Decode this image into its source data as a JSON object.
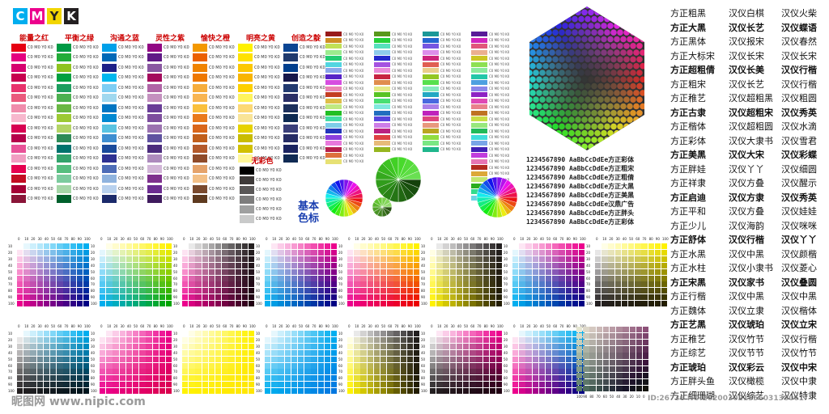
{
  "logo": [
    "C",
    "M",
    "Y",
    "K"
  ],
  "logo_colors": [
    "#00aeef",
    "#ec008c",
    "#fff200",
    "#231f20"
  ],
  "columns": [
    {
      "title": "能量之红",
      "colors": [
        "#e60012",
        "#e4007f",
        "#d6006f",
        "#c7004f",
        "#e8336d",
        "#ea5a7d",
        "#f08dac",
        "#f7b8cd",
        "#d70051",
        "#b5004a",
        "#e85298",
        "#f19ec2",
        "#e5004f",
        "#c30d23",
        "#a40035",
        "#8a1538"
      ]
    },
    {
      "title": "平衡之绿",
      "colors": [
        "#009944",
        "#22ac38",
        "#8fc31f",
        "#00a040",
        "#1e9e5f",
        "#4cb050",
        "#6ab744",
        "#9cc933",
        "#b3d465",
        "#2e8b57",
        "#00736d",
        "#33a36b",
        "#56be7f",
        "#7ccb9e",
        "#a5d6a7",
        "#00602c"
      ]
    },
    {
      "title": "沟通之蓝",
      "colors": [
        "#00a0e9",
        "#0068b7",
        "#1d2088",
        "#00b7ee",
        "#7ecef4",
        "#a0d8ef",
        "#0075c2",
        "#0088d1",
        "#59c3e1",
        "#3e8ed0",
        "#1a4a9b",
        "#2e3192",
        "#4d6cb7",
        "#8fb3de",
        "#b8d1ee",
        "#1b2a6b"
      ]
    },
    {
      "title": "灵性之紫",
      "colors": [
        "#920783",
        "#601986",
        "#8957a1",
        "#a40b5d",
        "#b064a6",
        "#c490bf",
        "#6a3e98",
        "#7d4e9e",
        "#9b72b0",
        "#5f52a0",
        "#4b2c7d",
        "#ad8bbd",
        "#d2b6d8",
        "#7e318e",
        "#6c2c91",
        "#3f1b5e"
      ]
    },
    {
      "title": "愉快之橙",
      "colors": [
        "#f39800",
        "#eb6100",
        "#f08300",
        "#ee7800",
        "#f6ad3c",
        "#f8b551",
        "#fac03d",
        "#e97a1b",
        "#d9661a",
        "#c15f1b",
        "#b45a2b",
        "#8f4b2a",
        "#e5a36b",
        "#f3c087",
        "#7a4a2e",
        "#5e3a1f"
      ]
    },
    {
      "title": "明亮之黄",
      "colors": [
        "#fff100",
        "#ffe100",
        "#fcc800",
        "#f8b500",
        "#fdd000",
        "#fff45c",
        "#fcd975",
        "#f9e497",
        "#e6d200",
        "#c9bc00",
        "#d1c000",
        "#fff799",
        "#f5e4a1",
        "#e3c700",
        "#c7a600",
        "#a68b00"
      ]
    },
    {
      "title": "创造之靛",
      "colors": [
        "#0a4593",
        "#1f3a6e",
        "#003f8e",
        "#17184b",
        "#223a70",
        "#2a2f66",
        "#1c305c",
        "#0d2a52",
        "#3a3f7a",
        "#262c65",
        "#1b2461",
        "#102a54",
        "#0e1f4a",
        "#22285b",
        "#18214d",
        "#0b1a3d"
      ]
    }
  ],
  "noncolor_title": "无彩色",
  "noncolor": [
    "#000000",
    "#3e3a39",
    "#595757",
    "#7d7d7d",
    "#9fa0a0",
    "#c9caca"
  ],
  "basic_label": [
    "基本",
    "色标"
  ],
  "fonts_col1": [
    "方正粗黑",
    "方正大黑",
    "方正黑体",
    "方正大标宋",
    "方正超粗倩",
    "方正粗宋",
    "方正稚艺",
    "方正古隶",
    "方正楷体",
    "方正彩体",
    "方正美黑",
    "方正胖娃",
    "方正祥隶",
    "方正启迪",
    "方正平和",
    "方正少儿",
    "方正舒体",
    "方正水黑",
    "方正水柱",
    "方正宋黑",
    "方正行楷",
    "方正魏体",
    "方正艺黑",
    "方正稚艺",
    "方正综艺",
    "方正琥珀",
    "方正胖头鱼",
    "方正细珊瑚"
  ],
  "fonts_col2": [
    "汉仪白棋",
    "汉仪长艺",
    "汉仪报宋",
    "汉仪长宋",
    "汉仪长美",
    "汉仪长艺",
    "汉仪超粗黑",
    "汉仪超粗宋",
    "汉仪超粗圆",
    "汉仪大隶书",
    "汉仪大宋",
    "汉仪丫丫",
    "汉仪方叠",
    "汉仪方隶",
    "汉仪方叠",
    "汉仪海韵",
    "汉仪行楷",
    "汉仪中黑",
    "汉仪小隶书",
    "汉仪家书",
    "汉仪中黑",
    "汉仪立隶",
    "汉仪琥珀",
    "汉仪竹节",
    "汉仪节节",
    "汉仪彩云",
    "汉仪橄榄",
    "汉仪综艺"
  ],
  "fonts_col3": [
    "汉仪火柴",
    "汉仪蝶语",
    "汉仪春然",
    "汉仪长宋",
    "汉仪行楷",
    "汉仪行楷",
    "汉仪粗圆",
    "汉仪秀英",
    "汉仪水滴",
    "汉仪雪君",
    "汉仪彩蝶",
    "汉仪细圆",
    "汉仪醒示",
    "汉仪秀英",
    "汉仪娃娃",
    "汉仪咪咪",
    "汉仪丫丫",
    "汉仪颜楷",
    "汉仪菱心",
    "汉仪叠圆",
    "汉仪中黑",
    "汉仪楷体",
    "汉仪立宋",
    "汉仪行楷",
    "汉仪竹节",
    "汉仪中宋",
    "汉仪中隶",
    "汉仪特隶"
  ],
  "number_lines": [
    "1234567890 AaBbCcDdEe方正彩体",
    "1234567890 AaBbCcDdEe方正粗宋",
    "1234567890 AaBbCcDdEe方正粗倩",
    "1234567890 AaBbCcDdEe方正大黑",
    "1234567890 AaBbCcDdEe方正美黑",
    "1234567890 AaBbCcDdEe汉鼎广告",
    "1234567890 AaBbCcDdEe方正胖头",
    "1234567890 AaBbCcDdEe方正彩体"
  ],
  "grid_ticks": [
    "0",
    "10",
    "20",
    "30",
    "40",
    "50",
    "60",
    "70",
    "80",
    "90",
    "100"
  ],
  "gray_ticks": [
    "100",
    "90",
    "80",
    "70",
    "60",
    "50",
    "40",
    "30",
    "20",
    "10",
    "0"
  ],
  "watermark_left": "昵图网 www.nipic.com",
  "watermark_right": "ID:26736 NO:20200302155603138061"
}
